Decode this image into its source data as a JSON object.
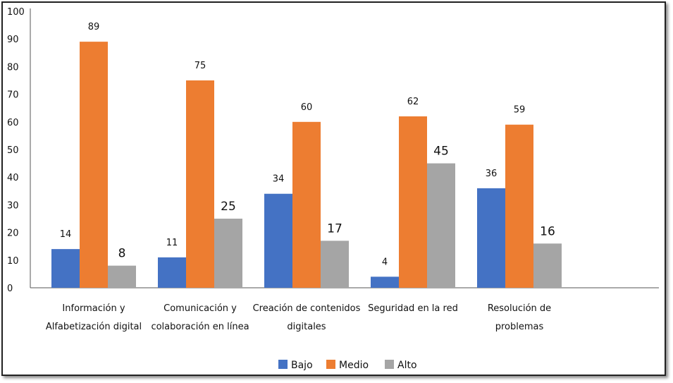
{
  "chart_data": {
    "type": "bar",
    "title": "",
    "xlabel": "",
    "ylabel": "",
    "ylim": [
      0,
      100
    ],
    "yticks": [
      0,
      10,
      20,
      30,
      40,
      50,
      60,
      70,
      80,
      90,
      100
    ],
    "grid": false,
    "legend_position": "bottom",
    "categories": [
      [
        "Información y",
        "Alfabetización digital"
      ],
      [
        "Comunicación y",
        "colaboración en línea"
      ],
      [
        "Creación de contenidos",
        "digitales"
      ],
      [
        "Seguridad en la red"
      ],
      [
        "Resolución de",
        "problemas"
      ]
    ],
    "series": [
      {
        "name": "Bajo",
        "color": "#4472C4",
        "values": [
          14,
          11,
          34,
          4,
          36
        ]
      },
      {
        "name": "Medio",
        "color": "#ED7D31",
        "values": [
          89,
          75,
          60,
          62,
          59
        ]
      },
      {
        "name": "Alto",
        "color": "#A5A5A5",
        "values": [
          8,
          25,
          17,
          45,
          16
        ]
      }
    ]
  }
}
